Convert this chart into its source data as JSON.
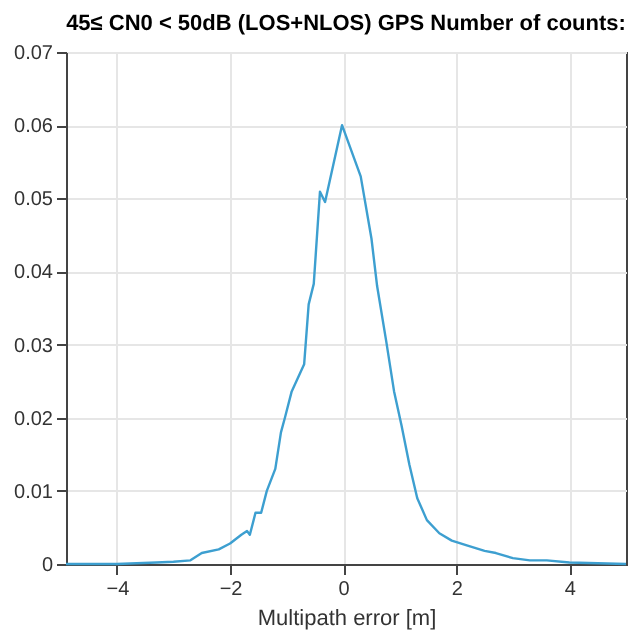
{
  "chart_data": {
    "type": "line",
    "title": "45≤ CN0 < 50dB (LOS+NLOS) GPS Number of counts:",
    "xlabel": "Multipath error [m]",
    "x": [
      -4.9,
      -4,
      -3.3,
      -3,
      -2.7,
      -2.5,
      -2.2,
      -2,
      -1.8,
      -1.7,
      -1.65,
      -1.55,
      -1.45,
      -1.35,
      -1.2,
      -1.1,
      -1.03,
      -0.91,
      -0.69,
      -0.61,
      -0.52,
      -0.41,
      -0.32,
      -0.02,
      0.31,
      0.5,
      0.6,
      0.76,
      0.9,
      1.03,
      1.17,
      1.31,
      1.48,
      1.7,
      1.92,
      2.2,
      2.5,
      2.7,
      3.0,
      3.3,
      3.6,
      4.0,
      4.5,
      5.0
    ],
    "series": [
      {
        "color": "#3d9fd0",
        "values": [
          0,
          0,
          0.0002,
          0.0003,
          0.0005,
          0.0015,
          0.002,
          0.0028,
          0.004,
          0.0045,
          0.004,
          0.007,
          0.007,
          0.01,
          0.013,
          0.018,
          0.02,
          0.0236,
          0.0273,
          0.0355,
          0.0383,
          0.0509,
          0.0495,
          0.06,
          0.053,
          0.0445,
          0.038,
          0.0305,
          0.0236,
          0.019,
          0.0136,
          0.009,
          0.006,
          0.0042,
          0.0032,
          0.0025,
          0.0018,
          0.0015,
          0.0008,
          0.0005,
          0.0005,
          0.0002,
          0.0001,
          0
        ]
      }
    ],
    "xlim": [
      -4.9,
      5
    ],
    "xticks": [
      -4,
      -2,
      0,
      2,
      4
    ],
    "ylim": [
      0,
      0.07
    ],
    "yticks": [
      0,
      0.01,
      0.02,
      0.03,
      0.04,
      0.05,
      0.06,
      0.07
    ],
    "grid": true,
    "marker": "none",
    "line_style": "solid"
  }
}
